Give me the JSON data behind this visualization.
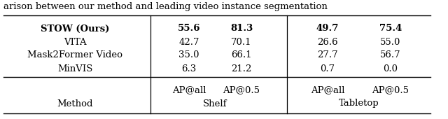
{
  "methods": [
    "MinVIS",
    "Mask2Former Video",
    "VITA",
    "STOW (Ours)"
  ],
  "shelf_ap_all": [
    "6.3",
    "35.0",
    "42.7",
    "55.6"
  ],
  "shelf_ap_05": [
    "21.2",
    "66.1",
    "70.1",
    "81.3"
  ],
  "tabletop_ap_all": [
    "0.7",
    "27.7",
    "26.6",
    "49.7"
  ],
  "tabletop_ap_05": [
    "0.0",
    "56.7",
    "55.0",
    "75.4"
  ],
  "bold_row": 3,
  "col_header_1": "Shelf",
  "col_header_2": "Tabletop",
  "sub_header_1a": "AP@all",
  "sub_header_1b": "AP@0.5",
  "sub_header_2a": "AP@all",
  "sub_header_2b": "AP@0.5",
  "method_col_label": "Method",
  "caption": "arison between our method and leading video instance segmentation",
  "bg_color": "#ffffff",
  "line_color": "#000000",
  "font_size": 9.5,
  "caption_font_size": 9.5
}
